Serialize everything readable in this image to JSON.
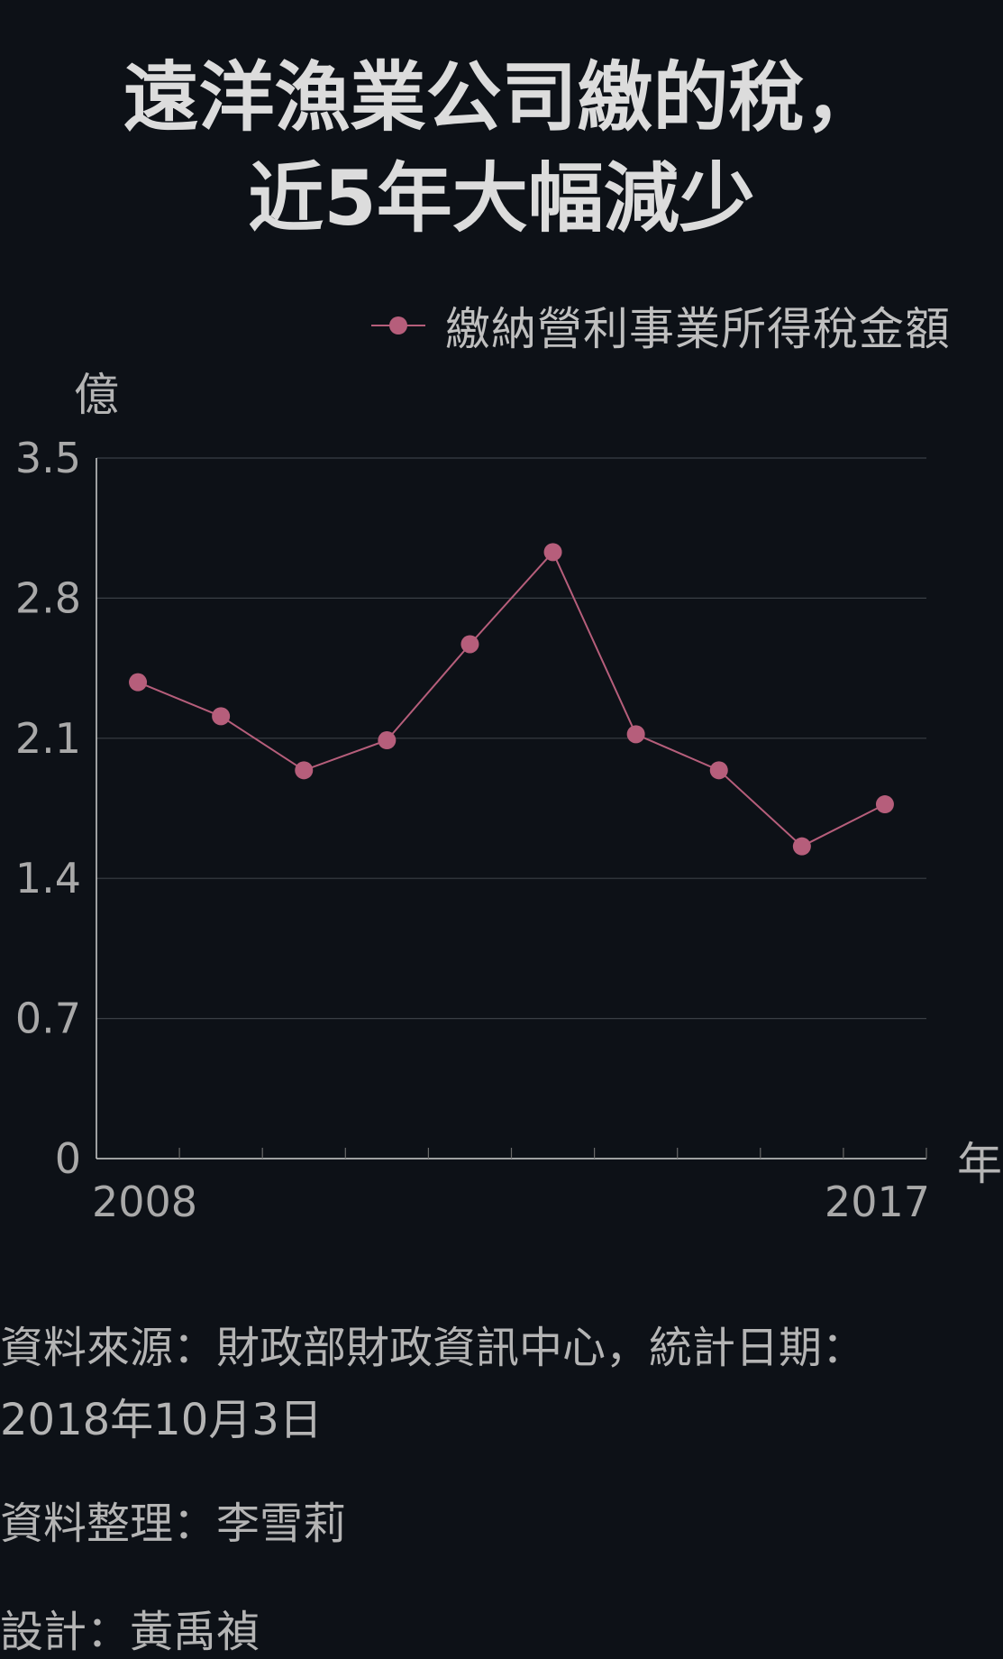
{
  "header": {
    "title_line1": "遠洋漁業公司繳的稅，",
    "title_line2": "近5年大幅減少"
  },
  "chart_data": {
    "type": "line",
    "title": "遠洋漁業公司繳的稅，近5年大幅減少",
    "ylabel": "億",
    "xlabel": "年",
    "ylim": [
      0,
      3.5
    ],
    "yticks": [
      "0",
      "0.7",
      "1.4",
      "2.1",
      "2.8",
      "3.5"
    ],
    "x": [
      2008,
      2009,
      2010,
      2011,
      2012,
      2013,
      2014,
      2015,
      2016,
      2017
    ],
    "xtick_labels": [
      "2008",
      "2017"
    ],
    "series": [
      {
        "name": "繳納營利事業所得稅金額",
        "values": [
          2.38,
          2.21,
          1.94,
          2.09,
          2.57,
          3.03,
          2.12,
          1.94,
          1.56,
          1.77
        ]
      }
    ],
    "grid": true,
    "legend_position": "top-right",
    "colors": {
      "series": "#b65e7b",
      "axis": "#cfcfcf",
      "grid": "#3a3f45",
      "background": "#0d1117"
    }
  },
  "footer": {
    "source": "資料來源：財政部財政資訊中心，統計日期：2018年10月3日",
    "compiled_by": "資料整理：李雪莉",
    "design": "設計：黃禹禎"
  }
}
